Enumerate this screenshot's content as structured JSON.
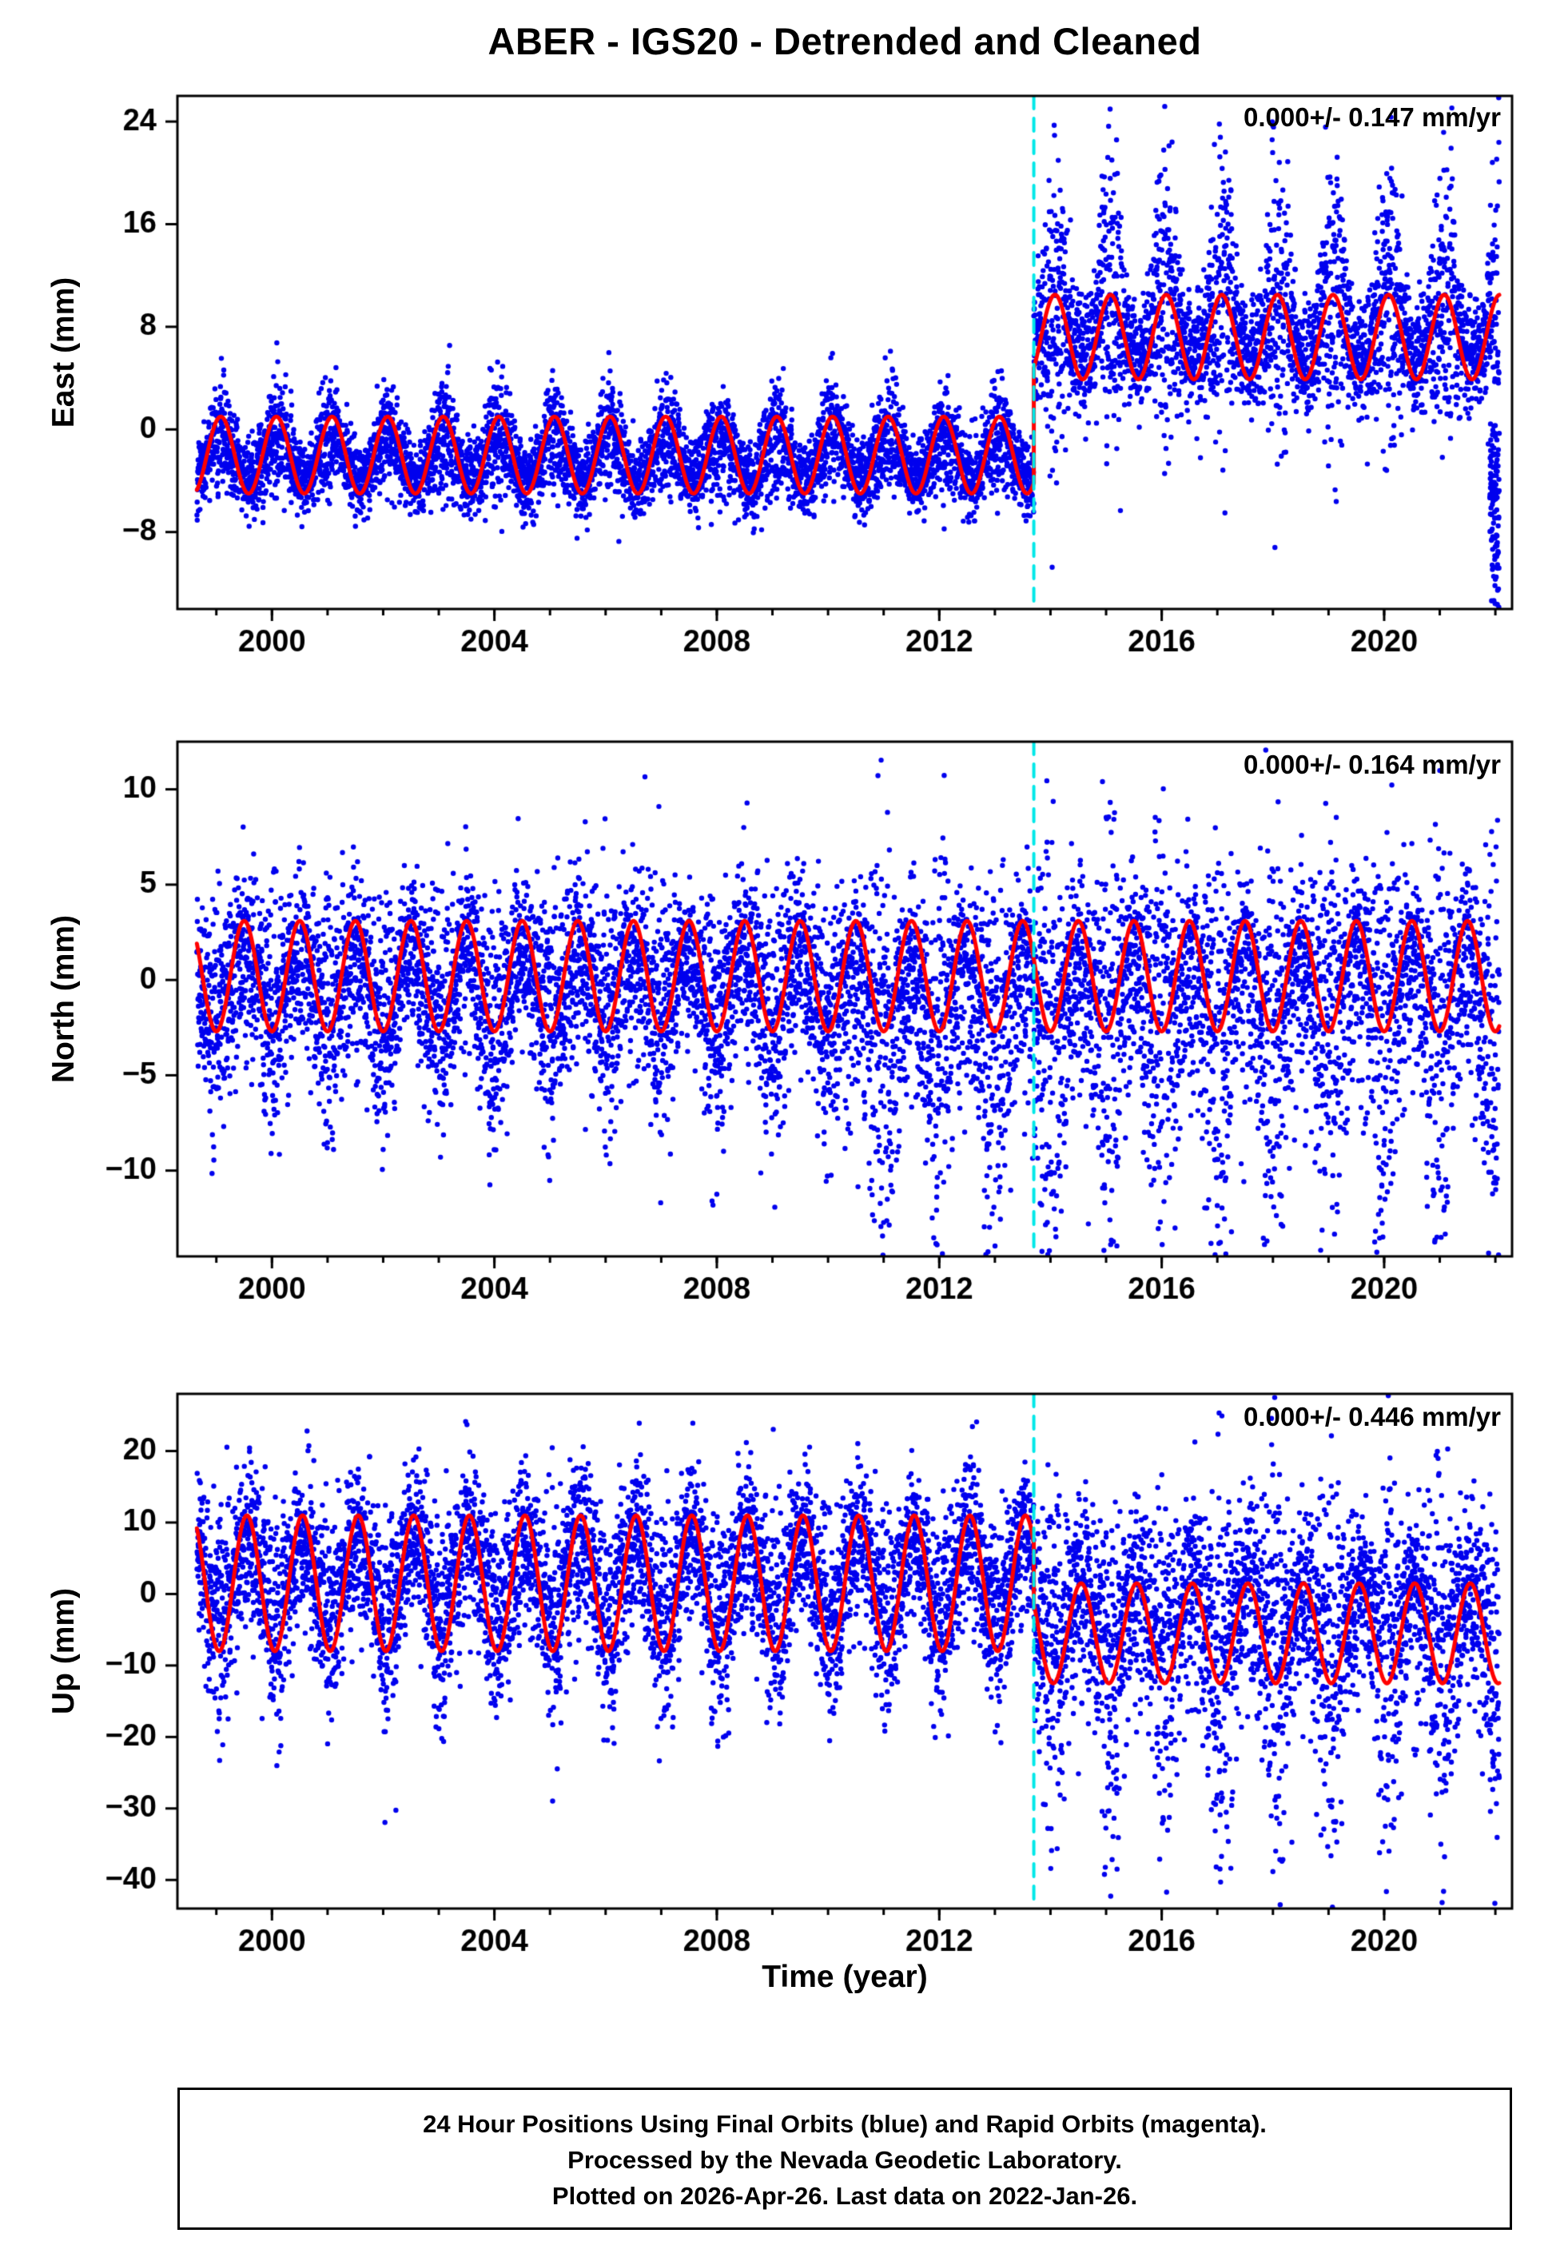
{
  "title": "ABER - IGS20 - Detrended and Cleaned",
  "xlabel": "Time (year)",
  "footer": {
    "line1": "24 Hour Positions Using Final Orbits (blue) and Rapid Orbits (magenta).",
    "line2": "Processed by the Nevada Geodetic Laboratory.",
    "line3": "Plotted on 2026-Apr-26. Last data on 2022-Jan-26."
  },
  "colors": {
    "points": "#0000ee",
    "model": "#ff0000",
    "break_line": "#00e8e8",
    "frame": "#000000",
    "text": "#000000"
  },
  "chart_data": [
    {
      "type": "scatter",
      "name": "East",
      "ylabel": "East (mm)",
      "annotation": "0.000+/- 0.147 mm/yr",
      "xlim": [
        1998.3,
        2022.3
      ],
      "xticks": [
        2000,
        2004,
        2008,
        2012,
        2016,
        2020
      ],
      "ylim": [
        -14,
        26
      ],
      "yticks": [
        -8,
        0,
        8,
        16,
        24
      ],
      "break_x": 2013.7,
      "data_start": 1998.65,
      "data_end": 2022.07,
      "model": [
        {
          "x0": 1998.65,
          "x1": 2013.7,
          "mean": -2.0,
          "amp": 3.0,
          "peak": 0.08
        },
        {
          "x0": 2013.7,
          "x1": 2022.07,
          "mean": 7.2,
          "amp": 3.3,
          "peak": 0.08
        }
      ],
      "scatter": [
        {
          "x0": 1998.65,
          "x1": 2013.7,
          "mean": -2.2,
          "amp": 1.8,
          "peak": 0.08,
          "noise": 1.5,
          "burst": 0.6,
          "per_year": 360,
          "out_rate": 0.004,
          "out_scale": 2.4
        },
        {
          "x0": 2013.7,
          "x1": 2022.07,
          "mean": 8.0,
          "amp": 2.5,
          "peak": 0.08,
          "noise": 2.2,
          "burst": 2.2,
          "per_year": 360
        },
        {
          "x0": 2021.9,
          "x1": 2022.07,
          "mean": -6.0,
          "amp": 0,
          "peak": 0,
          "noise": 3.5,
          "burst": 0,
          "skew": -0.4,
          "per_year": 700
        }
      ]
    },
    {
      "type": "scatter",
      "name": "North",
      "ylabel": "North (mm)",
      "annotation": "0.000+/- 0.164 mm/yr",
      "xlim": [
        1998.3,
        2022.3
      ],
      "xticks": [
        2000,
        2004,
        2008,
        2012,
        2016,
        2020
      ],
      "ylim": [
        -14.5,
        12.5
      ],
      "yticks": [
        -10,
        -5,
        0,
        5,
        10
      ],
      "break_x": 2013.7,
      "data_start": 1998.65,
      "data_end": 2022.07,
      "model": [
        {
          "x0": 1998.65,
          "x1": 2022.07,
          "mean": 0.2,
          "amp": 2.9,
          "peak": 0.5
        }
      ],
      "scatter": [
        {
          "x0": 1998.65,
          "x1": 2010.3,
          "mean": -0.5,
          "amp": 1.8,
          "peak": 0.5,
          "noise": 2.3,
          "burst": 0.5,
          "burst_peak": 0.0,
          "per_year": 360,
          "out_rate": 0.005,
          "out_scale": 2.2
        },
        {
          "x0": 2010.3,
          "x1": 2013.7,
          "mean": -1.5,
          "amp": 2.0,
          "peak": 0.5,
          "noise": 2.2,
          "burst": 1.5,
          "burst_peak": 0.0,
          "skew": -0.5,
          "per_year": 360
        },
        {
          "x0": 2013.7,
          "x1": 2022.07,
          "mean": -1.0,
          "amp": 2.2,
          "peak": 0.5,
          "noise": 2.2,
          "burst": 1.9,
          "burst_peak": 0.0,
          "skew": -0.5,
          "per_year": 360
        }
      ]
    },
    {
      "type": "scatter",
      "name": "Up",
      "ylabel": "Up (mm)",
      "annotation": "0.000+/- 0.446 mm/yr",
      "xlim": [
        1998.3,
        2022.3
      ],
      "xticks": [
        2000,
        2004,
        2008,
        2012,
        2016,
        2020
      ],
      "ylim": [
        -44,
        28
      ],
      "yticks": [
        -40,
        -30,
        -20,
        -10,
        0,
        10,
        20
      ],
      "break_x": 2013.7,
      "data_start": 1998.65,
      "data_end": 2022.07,
      "model": [
        {
          "x0": 1998.65,
          "x1": 2013.7,
          "mean": 1.5,
          "amp": 9.5,
          "peak": 0.55
        },
        {
          "x0": 2013.7,
          "x1": 2022.07,
          "mean": -5.5,
          "amp": 7.0,
          "peak": 0.55
        }
      ],
      "scatter": [
        {
          "x0": 1998.65,
          "x1": 2013.7,
          "mean": 2.0,
          "amp": 6.0,
          "peak": 0.55,
          "noise": 5.5,
          "burst": 0.35,
          "burst_peak": 0.05,
          "per_year": 360,
          "out_rate": 0.004,
          "out_scale": 2.0
        },
        {
          "x0": 2013.7,
          "x1": 2022.07,
          "mean": -4.0,
          "amp": 5.0,
          "peak": 0.55,
          "noise": 6.0,
          "burst": 1.2,
          "burst_peak": 0.05,
          "skew": -0.3,
          "per_year": 360
        }
      ]
    }
  ]
}
